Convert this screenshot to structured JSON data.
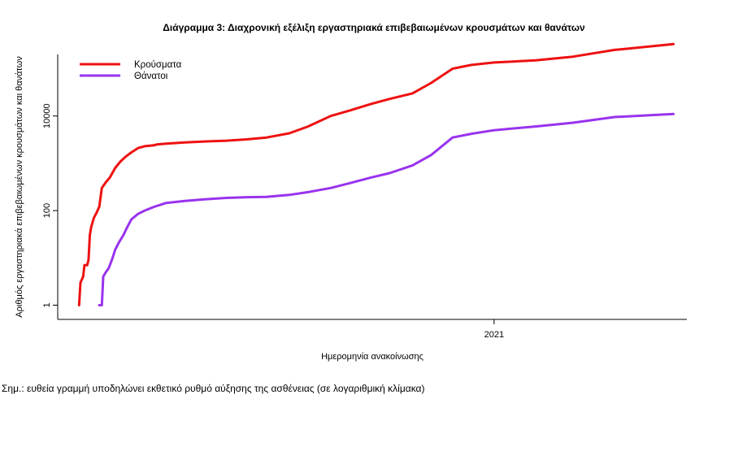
{
  "chart_data": {
    "type": "line",
    "title": "Διάγραμμα 3: Διαχρονική εξέλιξη εργαστηριακά επιβεβαιωμένων κρουσμάτων και θανάτων",
    "xlabel": "Ημερομηνία ανακοίνωσης",
    "ylabel": "Αριθμός εργαστηριακά επιβεβαιωμένων κρουσμάτων και θανάτων",
    "y_scale": "log",
    "ylim": [
      0.5,
      200000
    ],
    "xlim": [
      "2020-02-10",
      "2021-05-25"
    ],
    "y_ticks": [
      {
        "value": 1,
        "label": "1"
      },
      {
        "value": 100,
        "label": "100"
      },
      {
        "value": 10000,
        "label": "10000"
      }
    ],
    "x_ticks": [
      {
        "value": "2021-01-01",
        "label": "2021"
      }
    ],
    "grid": false,
    "legend_position": "top-left",
    "series": [
      {
        "name": "Κρούσματα",
        "color": "#ee1111",
        "points": [
          [
            "2020-02-26",
            1
          ],
          [
            "2020-02-27",
            3
          ],
          [
            "2020-02-29",
            4
          ],
          [
            "2020-03-01",
            7
          ],
          [
            "2020-03-03",
            7
          ],
          [
            "2020-03-04",
            9
          ],
          [
            "2020-03-05",
            30
          ],
          [
            "2020-03-06",
            45
          ],
          [
            "2020-03-08",
            70
          ],
          [
            "2020-03-10",
            90
          ],
          [
            "2020-03-12",
            120
          ],
          [
            "2020-03-14",
            300
          ],
          [
            "2020-03-17",
            400
          ],
          [
            "2020-03-20",
            500
          ],
          [
            "2020-03-24",
            800
          ],
          [
            "2020-03-28",
            1100
          ],
          [
            "2020-04-01",
            1400
          ],
          [
            "2020-04-05",
            1700
          ],
          [
            "2020-04-10",
            2100
          ],
          [
            "2020-04-15",
            2300
          ],
          [
            "2020-04-22",
            2400
          ],
          [
            "2020-04-24",
            2500
          ],
          [
            "2020-05-01",
            2600
          ],
          [
            "2020-05-15",
            2750
          ],
          [
            "2020-05-31",
            2900
          ],
          [
            "2020-06-15",
            3000
          ],
          [
            "2020-06-30",
            3200
          ],
          [
            "2020-07-15",
            3500
          ],
          [
            "2020-08-01",
            4300
          ],
          [
            "2020-08-15",
            6000
          ],
          [
            "2020-09-01",
            10000
          ],
          [
            "2020-09-15",
            13000
          ],
          [
            "2020-10-01",
            18000
          ],
          [
            "2020-10-15",
            23000
          ],
          [
            "2020-11-01",
            30000
          ],
          [
            "2020-11-15",
            50000
          ],
          [
            "2020-12-01",
            100000
          ],
          [
            "2020-12-15",
            120000
          ],
          [
            "2021-01-01",
            135000
          ],
          [
            "2021-02-01",
            150000
          ],
          [
            "2021-03-01",
            180000
          ],
          [
            "2021-04-01",
            250000
          ],
          [
            "2021-05-15",
            330000
          ]
        ]
      },
      {
        "name": "Θάνατοι",
        "color": "#9933ee",
        "points": [
          [
            "2020-03-12",
            1
          ],
          [
            "2020-03-14",
            1
          ],
          [
            "2020-03-15",
            4
          ],
          [
            "2020-03-17",
            5
          ],
          [
            "2020-03-19",
            6
          ],
          [
            "2020-03-20",
            7
          ],
          [
            "2020-03-22",
            10
          ],
          [
            "2020-03-24",
            15
          ],
          [
            "2020-03-27",
            22
          ],
          [
            "2020-03-30",
            30
          ],
          [
            "2020-04-02",
            45
          ],
          [
            "2020-04-05",
            65
          ],
          [
            "2020-04-10",
            85
          ],
          [
            "2020-04-15",
            100
          ],
          [
            "2020-04-22",
            120
          ],
          [
            "2020-05-01",
            145
          ],
          [
            "2020-05-15",
            160
          ],
          [
            "2020-06-01",
            175
          ],
          [
            "2020-06-15",
            185
          ],
          [
            "2020-07-01",
            192
          ],
          [
            "2020-07-15",
            195
          ],
          [
            "2020-08-01",
            215
          ],
          [
            "2020-08-15",
            245
          ],
          [
            "2020-09-01",
            300
          ],
          [
            "2020-09-15",
            380
          ],
          [
            "2020-10-01",
            500
          ],
          [
            "2020-10-15",
            620
          ],
          [
            "2020-11-01",
            900
          ],
          [
            "2020-11-15",
            1500
          ],
          [
            "2020-12-01",
            3500
          ],
          [
            "2020-12-15",
            4200
          ],
          [
            "2021-01-01",
            5000
          ],
          [
            "2021-02-01",
            6000
          ],
          [
            "2021-03-01",
            7200
          ],
          [
            "2021-04-01",
            9500
          ],
          [
            "2021-05-15",
            11000
          ]
        ]
      }
    ]
  },
  "note": "Σημ.: ευθεία γραμμή υποδηλώνει εκθετικό ρυθμό αύξησης της ασθένειας (σε λογαριθμική κλίμακα)"
}
